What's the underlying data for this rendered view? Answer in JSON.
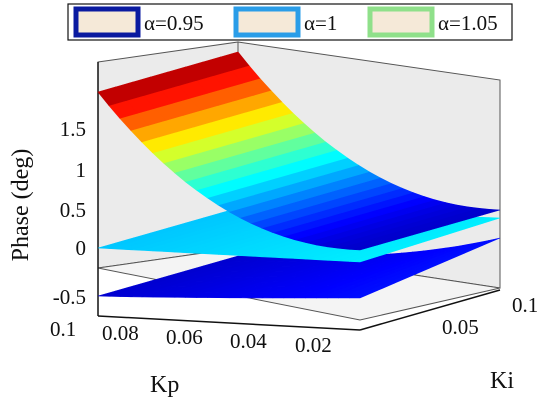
{
  "chart_data": {
    "type": "surface3d",
    "title": "",
    "xlabel": "Kp",
    "ylabel": "Ki",
    "zlabel": "Phase (deg)",
    "kp_ticks": [
      "0.1",
      "0.08",
      "0.06",
      "0.04",
      "0.02"
    ],
    "ki_ticks": [
      "0.05",
      "0.1"
    ],
    "z_ticks": [
      "-0.5",
      "0",
      "0.5",
      "1",
      "1.5"
    ],
    "kp_range": [
      0.01,
      0.1
    ],
    "ki_range": [
      0.01,
      0.1
    ],
    "zlim": [
      -0.7,
      2.0
    ],
    "legend": {
      "placement": "top"
    },
    "series": [
      {
        "name": "α=0.95",
        "alpha": 0.95,
        "legend_color": "#0a1aa0",
        "phase_at_kp_max": -0.6,
        "phase_at_kp_min": -0.45,
        "colormap": "blue"
      },
      {
        "name": "α=1",
        "alpha": 1,
        "legend_color": "#2a9de8",
        "phase_at_kp_max": 0.0,
        "phase_at_kp_min": 0.0,
        "colormap": "cyan"
      },
      {
        "name": "α=1.05",
        "alpha": 1.05,
        "legend_color": "#8fe08a",
        "phase_at_kp_max": 1.95,
        "phase_at_kp_min": 0.15,
        "colormap": "jet"
      }
    ]
  }
}
